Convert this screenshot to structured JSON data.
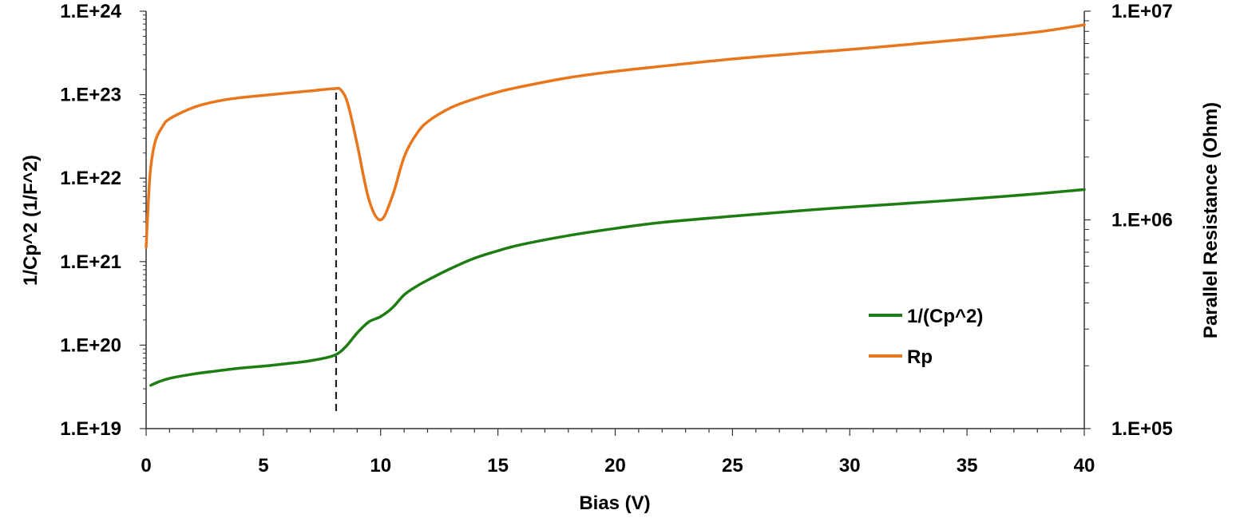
{
  "chart_data": {
    "type": "line",
    "xlabel": "Bias (V)",
    "ylabel_left": "1/Cp^2 (1/F^2)",
    "ylabel_right": "Parallel Resistance (Ohm)",
    "xlim": [
      0,
      40
    ],
    "x_ticks": [
      "0",
      "5",
      "10",
      "15",
      "20",
      "25",
      "30",
      "35",
      "40"
    ],
    "y_left_scale": "log",
    "y_left_lim": [
      1e+19,
      1e+24
    ],
    "y_left_ticks": [
      "1.E+19",
      "1.E+20",
      "1.E+21",
      "1.E+22",
      "1.E+23",
      "1.E+24"
    ],
    "y_right_scale": "log",
    "y_right_lim": [
      100000.0,
      10000000.0
    ],
    "y_right_ticks": [
      "1.E+05",
      "1.E+06",
      "1.E+07"
    ],
    "grid": false,
    "legend_position": "lower-right",
    "reference_line": {
      "x": 8.1,
      "style": "dashed",
      "color": "#222222"
    },
    "series": [
      {
        "name": "1/(Cp^2)",
        "axis": "left",
        "color": "#1e7d12",
        "x": [
          0.2,
          0.5,
          1,
          2,
          3,
          4,
          5,
          6,
          7,
          8,
          8.5,
          9,
          9.5,
          10,
          10.5,
          11,
          11.5,
          12,
          13,
          14,
          15,
          16,
          18,
          20,
          22,
          25,
          28,
          30,
          32,
          35,
          38,
          40
        ],
        "y": [
          3.3e+19,
          3.6e+19,
          4e+19,
          4.5e+19,
          4.9e+19,
          5.3e+19,
          5.6e+19,
          6e+19,
          6.5e+19,
          7.5e+19,
          9.5e+19,
          1.4e+20,
          1.9e+20,
          2.2e+20,
          2.8e+20,
          4e+20,
          5e+20,
          6e+20,
          8.3e+20,
          1.1e+21,
          1.35e+21,
          1.6e+21,
          2.05e+21,
          2.5e+21,
          2.95e+21,
          3.5e+21,
          4.1e+21,
          4.5e+21,
          4.9e+21,
          5.6e+21,
          6.5e+21,
          7.3e+21
        ]
      },
      {
        "name": "Rp",
        "axis": "right",
        "color": "#e8761c",
        "x": [
          0,
          0.1,
          0.2,
          0.4,
          0.7,
          1,
          2,
          3,
          4,
          5,
          6,
          7,
          8,
          8.3,
          8.6,
          9,
          9.5,
          10,
          10.5,
          11,
          11.5,
          12,
          13,
          14,
          15,
          16,
          18,
          20,
          22,
          25,
          28,
          30,
          32,
          35,
          38,
          40
        ],
        "y": [
          740000.0,
          1250000.0,
          1800000.0,
          2400000.0,
          2800000.0,
          3050000.0,
          3450000.0,
          3700000.0,
          3850000.0,
          3950000.0,
          4050000.0,
          4150000.0,
          4250000.0,
          4200000.0,
          3600000.0,
          2300000.0,
          1250000.0,
          1000000.0,
          1300000.0,
          2000000.0,
          2550000.0,
          2950000.0,
          3450000.0,
          3800000.0,
          4100000.0,
          4350000.0,
          4800000.0,
          5150000.0,
          5450000.0,
          5900000.0,
          6300000.0,
          6550000.0,
          6850000.0,
          7350000.0,
          7950000.0,
          8600000.0
        ]
      }
    ]
  }
}
